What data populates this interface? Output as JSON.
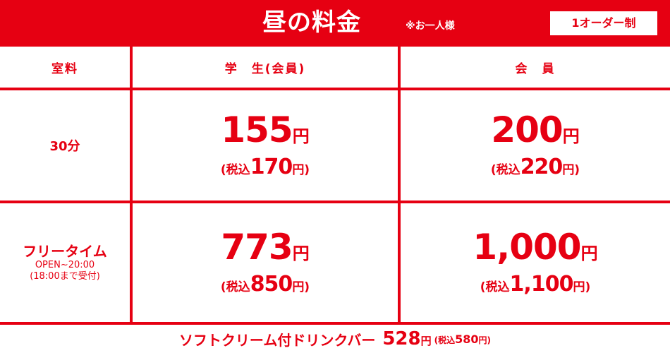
{
  "header": {
    "title": "昼の料金",
    "note": "※お一人様",
    "badge": "1オーダー制"
  },
  "columns": {
    "room": "室料",
    "student": "学　生(会員)",
    "member": "会　員"
  },
  "rows": [
    {
      "label": "30分",
      "student": {
        "price": "155",
        "unit": "円",
        "tax_prefix": "(税込",
        "tax_price": "170",
        "tax_suffix": "円)"
      },
      "member": {
        "price": "200",
        "unit": "円",
        "tax_prefix": "(税込",
        "tax_price": "220",
        "tax_suffix": "円)"
      }
    },
    {
      "label": "フリータイム",
      "sub1": "OPEN~20:00",
      "sub2": "(18:00まで受付)",
      "student": {
        "price": "773",
        "unit": "円",
        "tax_prefix": "(税込",
        "tax_price": "850",
        "tax_suffix": "円)"
      },
      "member": {
        "price": "1,000",
        "unit": "円",
        "tax_prefix": "(税込",
        "tax_price": "1,100",
        "tax_suffix": "円)"
      }
    }
  ],
  "footer": {
    "text": "ソフトクリーム付ドリンクバー",
    "price": "528",
    "unit": "円",
    "tax_prefix": "(税込",
    "tax_price": "580",
    "tax_suffix": "円)"
  },
  "colors": {
    "accent": "#e60012",
    "background": "#ffffff"
  }
}
